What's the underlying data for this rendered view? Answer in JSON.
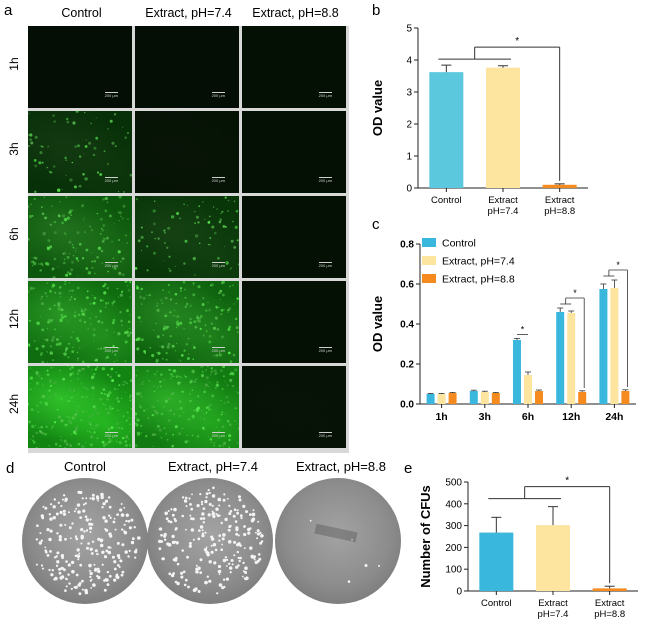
{
  "panels": {
    "a": "a",
    "b": "b",
    "c": "c",
    "d": "d",
    "e": "e"
  },
  "grid": {
    "columns": [
      "Control",
      "Extract, pH=7.4",
      "Extract, pH=8.8"
    ],
    "rows": [
      "1h",
      "3h",
      "6h",
      "12h",
      "24h"
    ],
    "scale_label": "200 μm",
    "brightness": [
      [
        0.02,
        0.02,
        0.03
      ],
      [
        0.3,
        0.06,
        0.03
      ],
      [
        0.62,
        0.35,
        0.03
      ],
      [
        0.8,
        0.72,
        0.03
      ],
      [
        1.0,
        0.92,
        0.05
      ]
    ],
    "green_color": "#2fb82f",
    "background_color": "#050705"
  },
  "plates": {
    "labels": [
      "Control",
      "Extract, pH=7.4",
      "Extract, pH=8.8"
    ],
    "colony_density": [
      1.0,
      1.0,
      0.02
    ],
    "plate_color": "#8f8f8f",
    "colony_color": "#f4f4f4"
  },
  "chart_data": [
    {
      "id": "b",
      "type": "bar",
      "ylabel": "OD value",
      "categories": [
        [
          "Control"
        ],
        [
          "Extract",
          "pH=7.4"
        ],
        [
          "Extract",
          "pH=8.8"
        ]
      ],
      "values": [
        3.62,
        3.76,
        0.1
      ],
      "errors": [
        0.22,
        0.06,
        0.03
      ],
      "colors": [
        "#5bc8de",
        "#fde5a0",
        "#f58a1f"
      ],
      "ylim": [
        0,
        5
      ],
      "yticks": [
        "0",
        "1",
        "2",
        "3",
        "4",
        "5"
      ],
      "significance": "*"
    },
    {
      "id": "c",
      "type": "bar",
      "ylabel": "OD value",
      "categories": [
        "1h",
        "3h",
        "6h",
        "12h",
        "24h"
      ],
      "series": [
        {
          "name": "Control",
          "color": "#3ab7dd",
          "values": [
            0.05,
            0.065,
            0.32,
            0.46,
            0.575
          ],
          "errors": [
            0.003,
            0.004,
            0.008,
            0.02,
            0.025
          ]
        },
        {
          "name": "Extract, pH=7.4",
          "color": "#fde5a0",
          "values": [
            0.05,
            0.06,
            0.145,
            0.455,
            0.58
          ],
          "errors": [
            0.003,
            0.004,
            0.015,
            0.01,
            0.04
          ]
        },
        {
          "name": "Extract, pH=8.8",
          "color": "#f58a1f",
          "values": [
            0.055,
            0.055,
            0.065,
            0.06,
            0.065
          ],
          "errors": [
            0.003,
            0.003,
            0.005,
            0.006,
            0.006
          ]
        }
      ],
      "ylim": [
        0,
        0.8
      ],
      "yticks": [
        "0.0",
        "0.2",
        "0.4",
        "0.6",
        "0.8"
      ],
      "legend": "top-left",
      "significance": "*"
    },
    {
      "id": "e",
      "type": "bar",
      "ylabel": "Number of CFUs",
      "categories": [
        [
          "Control"
        ],
        [
          "Extract",
          "pH=7.4"
        ],
        [
          "Extract",
          "pH=8.8"
        ]
      ],
      "values": [
        268,
        302,
        12
      ],
      "errors": [
        70,
        85,
        10
      ],
      "colors": [
        "#3ab7dd",
        "#fde5a0",
        "#f58a1f"
      ],
      "ylim": [
        0,
        500
      ],
      "yticks": [
        "0",
        "100",
        "200",
        "300",
        "400",
        "500"
      ],
      "significance": "*"
    }
  ]
}
